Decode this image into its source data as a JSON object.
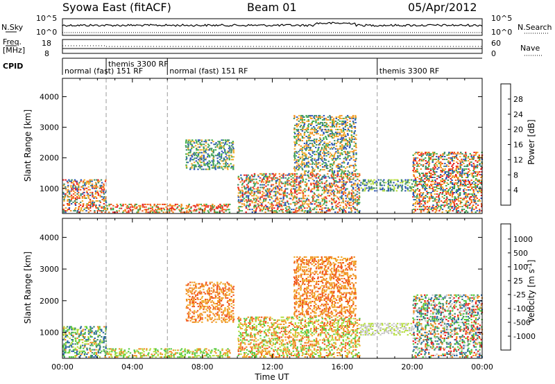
{
  "header": {
    "radar": "Syowa East (fitACF)",
    "beam": "Beam 01",
    "date": "05/Apr/2012"
  },
  "noise_panel": {
    "left_label": "N.Sky",
    "right_label": "N.Search",
    "left_ticks": [
      "10^5",
      "10^0"
    ],
    "right_ticks": [
      "10^5",
      "10^0"
    ]
  },
  "freq_panel": {
    "left_label_1": "Freq.",
    "left_label_2": "[MHz]",
    "right_label": "Nave",
    "left_ticks": [
      "18",
      "8"
    ],
    "right_ticks": [
      "60",
      "0"
    ]
  },
  "cpid_panel": {
    "label": "CPID",
    "segments": [
      {
        "text": "normal (fast) 151 RF",
        "start_h": 0.0
      },
      {
        "text": "themis 3300 RF",
        "start_h": 2.5
      },
      {
        "text": "normal (fast) 151 RF",
        "start_h": 6.0
      },
      {
        "text": "themis 3300 RF",
        "start_h": 18.0
      }
    ]
  },
  "chart_data": [
    {
      "type": "heatmap",
      "name": "power",
      "ylabel": "Slant Range [km]",
      "xlabel": "",
      "yticks": [
        "1000",
        "2000",
        "3000",
        "4000"
      ],
      "ylim": [
        180,
        4600
      ],
      "xlim_hours": [
        0,
        24
      ],
      "colorbar": {
        "label": "Power [dB]",
        "ticks": [
          "4",
          "8",
          "12",
          "16",
          "20",
          "24",
          "28"
        ],
        "colors": [
          "#1e1ee6",
          "#2850b4",
          "#3c8c64",
          "#3caa46",
          "#b4dc3c",
          "#f0dc32",
          "#f0aa28",
          "#f08c1e",
          "#f05014",
          "#e61e1e"
        ]
      },
      "patches": [
        {
          "h0": 0.0,
          "h1": 2.5,
          "r0": 200,
          "r1": 1300,
          "colors": [
            "#e61e1e",
            "#f05014",
            "#f08c1e",
            "#f0aa28",
            "#3c8c64",
            "#2850b4"
          ]
        },
        {
          "h0": 2.5,
          "h1": 9.6,
          "r0": 200,
          "r1": 500,
          "colors": [
            "#e61e1e",
            "#f05014",
            "#f08c1e",
            "#3caa46"
          ]
        },
        {
          "h0": 7.0,
          "h1": 9.8,
          "r0": 1600,
          "r1": 2600,
          "colors": [
            "#3c8c64",
            "#2850b4",
            "#f0aa28",
            "#3caa46"
          ]
        },
        {
          "h0": 10.0,
          "h1": 17.0,
          "r0": 200,
          "r1": 1500,
          "colors": [
            "#e61e1e",
            "#f05014",
            "#f08c1e",
            "#f0aa28",
            "#3c8c64",
            "#2850b4",
            "#3caa46"
          ]
        },
        {
          "h0": 13.2,
          "h1": 16.8,
          "r0": 1500,
          "r1": 3400,
          "colors": [
            "#3c8c64",
            "#2850b4",
            "#f0aa28",
            "#3caa46",
            "#f08c1e"
          ]
        },
        {
          "h0": 17.0,
          "h1": 20.0,
          "r0": 900,
          "r1": 1300,
          "colors": [
            "#3c8c64",
            "#2850b4",
            "#b4dc3c"
          ]
        },
        {
          "h0": 20.0,
          "h1": 24.0,
          "r0": 200,
          "r1": 2200,
          "colors": [
            "#e61e1e",
            "#f05014",
            "#f08c1e",
            "#f0aa28",
            "#3c8c64",
            "#2850b4",
            "#3caa46"
          ]
        }
      ]
    },
    {
      "type": "heatmap",
      "name": "velocity",
      "ylabel": "Slant Range [km]",
      "xlabel": "Time UT",
      "yticks": [
        "1000",
        "2000",
        "3000",
        "4000"
      ],
      "ylim": [
        180,
        4600
      ],
      "xticks": [
        "00:00",
        "04:00",
        "08:00",
        "12:00",
        "16:00",
        "20:00",
        "00:00"
      ],
      "xlim_hours": [
        0,
        24
      ],
      "colorbar": {
        "label": "Velocity [m s-1]",
        "label_main": "Velocity [m s",
        "label_sup": "-1",
        "label_end": "]",
        "ticks": [
          "-1000",
          "-500",
          "-100",
          "-25",
          "25",
          "100",
          "500",
          "1000"
        ],
        "colors": [
          "#e61e1e",
          "#f05014",
          "#f08c1e",
          "#f0aa28",
          "#c8c8c8",
          "#b4dc3c",
          "#50c83c",
          "#3c8c64",
          "#2864a0",
          "#1e3cc8"
        ]
      },
      "patches": [
        {
          "h0": 0.0,
          "h1": 2.5,
          "r0": 200,
          "r1": 1200,
          "colors": [
            "#3c8c64",
            "#50c83c",
            "#2864a0",
            "#b4dc3c",
            "#f08c1e"
          ]
        },
        {
          "h0": 2.5,
          "h1": 9.6,
          "r0": 200,
          "r1": 500,
          "colors": [
            "#50c83c",
            "#b4dc3c",
            "#f08c1e"
          ]
        },
        {
          "h0": 7.0,
          "h1": 9.8,
          "r0": 1300,
          "r1": 2600,
          "colors": [
            "#f08c1e",
            "#f0aa28",
            "#f05014"
          ]
        },
        {
          "h0": 10.0,
          "h1": 17.0,
          "r0": 200,
          "r1": 1500,
          "colors": [
            "#f08c1e",
            "#b4dc3c",
            "#50c83c",
            "#f0aa28",
            "#f05014"
          ]
        },
        {
          "h0": 13.2,
          "h1": 16.8,
          "r0": 1500,
          "r1": 3400,
          "colors": [
            "#f08c1e",
            "#f0aa28",
            "#f05014"
          ]
        },
        {
          "h0": 17.0,
          "h1": 20.0,
          "r0": 900,
          "r1": 1300,
          "colors": [
            "#c8c8c8",
            "#b4dc3c"
          ]
        },
        {
          "h0": 20.0,
          "h1": 24.0,
          "r0": 200,
          "r1": 2200,
          "colors": [
            "#3c8c64",
            "#2864a0",
            "#50c83c",
            "#f08c1e",
            "#e61e1e",
            "#c8c8c8"
          ]
        }
      ]
    }
  ]
}
